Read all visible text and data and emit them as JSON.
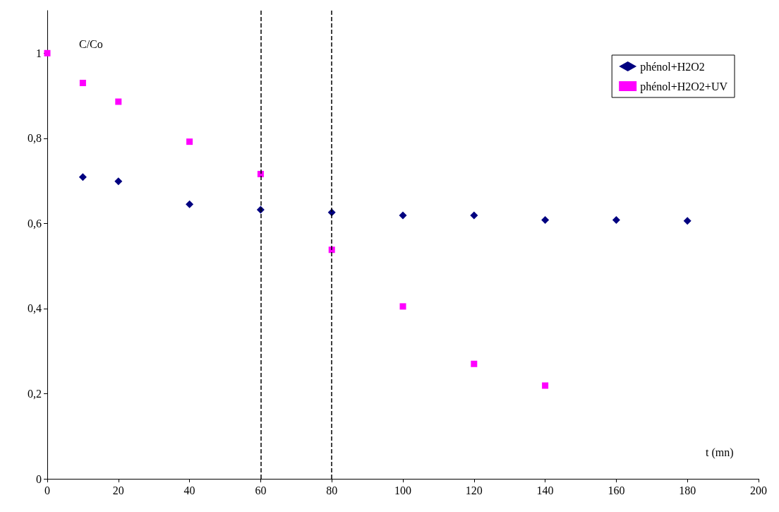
{
  "chart_data": {
    "type": "scatter",
    "xlabel": "t (mn)",
    "ylabel": "C/Co",
    "xlim": [
      0,
      200
    ],
    "xticks": [
      0,
      20,
      40,
      60,
      80,
      100,
      120,
      140,
      160,
      180,
      200
    ],
    "ylim": [
      0,
      1.1
    ],
    "yticks": [
      0,
      {
        "value": 0.2,
        "label": "0,2"
      },
      {
        "value": 0.4,
        "label": "0,4"
      },
      {
        "value": 0.6,
        "label": "0,6"
      },
      {
        "value": 0.8,
        "label": "0,8"
      },
      1
    ],
    "grid": false,
    "legend": "top right",
    "series": [
      {
        "name": "phénol+H2O2",
        "color": "#000080",
        "marker": "diamond",
        "x": [
          10,
          20,
          40,
          60,
          80,
          100,
          120,
          140,
          160,
          180
        ],
        "values": [
          0.709,
          0.699,
          0.645,
          0.632,
          0.626,
          0.619,
          0.619,
          0.608,
          0.608,
          0.606
        ]
      },
      {
        "name": "phénol+H2O2+UV",
        "color": "#ff00ff",
        "marker": "square",
        "x": [
          0,
          10,
          20,
          40,
          60,
          80,
          100,
          120,
          140
        ],
        "values": [
          1.0,
          0.93,
          0.886,
          0.792,
          0.716,
          0.538,
          0.405,
          0.27,
          0.219
        ]
      }
    ],
    "ref_lines": [
      {
        "axis": "x",
        "value": 60,
        "color": "#000000",
        "line_style": "dashed"
      },
      {
        "axis": "x",
        "value": 80,
        "color": "#000000",
        "line_style": "dashed"
      }
    ]
  }
}
